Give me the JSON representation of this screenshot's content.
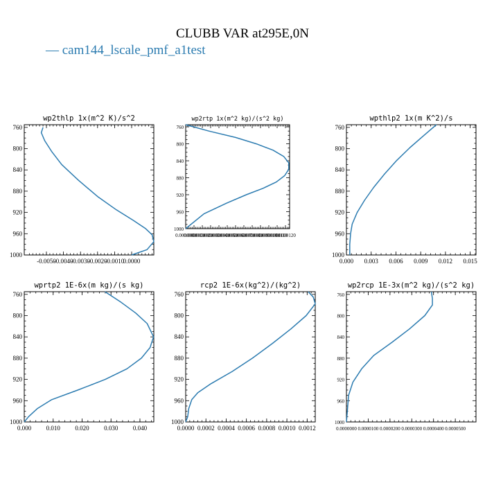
{
  "figure": {
    "title": "CLUBB VAR at295E,0N",
    "legend_label": "— cam144_lscale_pmf_a1test",
    "line_color": "#2b7bb0"
  },
  "chart_data": [
    {
      "type": "line",
      "title": "wp2thlp  1x(m^2 K)/s^2",
      "series": [
        {
          "name": "cam144_lscale_pmf_a1test",
          "x": [
            -0.0052,
            -0.0053,
            -0.0051,
            -0.0047,
            -0.0041,
            -0.0031,
            -0.002,
            -0.0009,
            0.0001,
            0.0008,
            0.0012,
            0.0013,
            0.0009,
            0.0
          ],
          "y": [
            760,
            770,
            785,
            805,
            830,
            860,
            890,
            915,
            935,
            950,
            962,
            975,
            990,
            1000
          ]
        }
      ],
      "xlim": [
        -0.0063,
        0.0013
      ],
      "ylim": [
        1000,
        755
      ],
      "xticks": [
        -0.005,
        -0.004,
        -0.003,
        -0.002,
        -0.001,
        0.0
      ],
      "xtick_labels": [
        "-0.0050",
        "-0.0040",
        "-0.0030",
        "-0.0020",
        "-0.0010",
        "0.0000"
      ],
      "yticks": [
        760,
        800,
        840,
        880,
        920,
        960,
        1000
      ],
      "ytick_labels": [
        "760",
        "800",
        "840",
        "880",
        "920",
        "960",
        "1000"
      ]
    },
    {
      "type": "line",
      "title": "wp2rtp  1x(m^2 kg)/(s^2 kg)",
      "series": [
        {
          "name": "cam144_lscale_pmf_a1test",
          "x": [
            0.0,
            2.8e-06,
            6e-06,
            8.5e-06,
            1.05e-05,
            1.18e-05,
            1.24e-05,
            1.24e-05,
            1.19e-05,
            1.09e-05,
            9.3e-06,
            7.3e-06,
            4.9e-06,
            2.2e-06,
            0.0
          ],
          "y": [
            755,
            770,
            785,
            800,
            815,
            830,
            845,
            860,
            875,
            890,
            905,
            920,
            940,
            965,
            1000
          ]
        }
      ],
      "xlim": [
        0.0,
        1.25e-05
      ],
      "ylim": [
        1000,
        755
      ],
      "xticks": [
        0.0,
        1e-06,
        2e-06,
        3e-06,
        4e-06,
        5e-06,
        6e-06,
        7e-06,
        8e-06,
        9e-06,
        1e-05,
        1.1e-05,
        1.2e-05
      ],
      "xtick_labels": [
        "0.0000000",
        "0.0000010",
        "0.0000020",
        "0.0000030",
        "0.0000040",
        "0.0000050",
        "0.0000060",
        "0.0000070",
        "0.0000080",
        "0.0000090",
        "0.0000100",
        "0.0000110",
        "0.0000120"
      ],
      "yticks": [
        760,
        800,
        840,
        880,
        920,
        960,
        1000
      ],
      "ytick_labels": [
        "760",
        "800",
        "840",
        "880",
        "920",
        "960",
        "1000"
      ]
    },
    {
      "type": "line",
      "title": "wpthlp2  1x(m K^2)/s",
      "series": [
        {
          "name": "cam144_lscale_pmf_a1test",
          "x": [
            0.0109,
            0.0094,
            0.0077,
            0.0061,
            0.0046,
            0.0033,
            0.0022,
            0.0013,
            0.0007,
            0.0005,
            0.0004,
            0.0004
          ],
          "y": [
            755,
            775,
            798,
            822,
            848,
            873,
            897,
            920,
            942,
            960,
            980,
            1000
          ]
        }
      ],
      "xlim": [
        0.0,
        0.0157
      ],
      "ylim": [
        1000,
        755
      ],
      "xticks": [
        0.0,
        0.003,
        0.006,
        0.009,
        0.012,
        0.015
      ],
      "xtick_labels": [
        "0.000",
        "0.003",
        "0.006",
        "0.009",
        "0.012",
        "0.015"
      ],
      "yticks": [
        760,
        800,
        840,
        880,
        920,
        960,
        1000
      ],
      "ytick_labels": [
        "760",
        "800",
        "840",
        "880",
        "920",
        "960",
        "1000"
      ]
    },
    {
      "type": "line",
      "title": "wprtp2  1E-6x(m kg)/(s kg)",
      "series": [
        {
          "name": "cam144_lscale_pmf_a1test",
          "x": [
            0.0279,
            0.0335,
            0.0385,
            0.0425,
            0.0447,
            0.0435,
            0.0405,
            0.0355,
            0.028,
            0.0185,
            0.0095,
            0.0045,
            0.0015,
            0.0
          ],
          "y": [
            755,
            775,
            795,
            815,
            840,
            860,
            880,
            900,
            920,
            940,
            958,
            975,
            990,
            1000
          ]
        }
      ],
      "xlim": [
        0.0,
        0.0448
      ],
      "ylim": [
        1000,
        755
      ],
      "xticks": [
        0.0,
        0.01,
        0.02,
        0.03,
        0.04
      ],
      "xtick_labels": [
        "0.000",
        "0.010",
        "0.020",
        "0.030",
        "0.040"
      ],
      "yticks": [
        760,
        800,
        840,
        880,
        920,
        960,
        1000
      ],
      "ytick_labels": [
        "760",
        "800",
        "840",
        "880",
        "920",
        "960",
        "1000"
      ]
    },
    {
      "type": "line",
      "title": "rcp2  1E-6x(kg^2)/(kg^2)",
      "series": [
        {
          "name": "cam144_lscale_pmf_a1test",
          "x": [
            0.00121,
            0.00126,
            0.00128,
            0.00119,
            0.00104,
            0.00086,
            0.00066,
            0.00046,
            0.00025,
            0.00012,
            6e-05,
            3e-05,
            2e-05,
            0.0
          ],
          "y": [
            755,
            765,
            778,
            800,
            825,
            852,
            880,
            905,
            928,
            945,
            958,
            975,
            990,
            1000
          ]
        }
      ],
      "xlim": [
        0.0,
        0.00128
      ],
      "ylim": [
        1000,
        755
      ],
      "xticks": [
        0.0,
        0.0002,
        0.0004,
        0.0006,
        0.0008,
        0.001,
        0.0012
      ],
      "xtick_labels": [
        "0.0000",
        "0.0002",
        "0.0004",
        "0.0006",
        "0.0008",
        "0.0010",
        "0.0012"
      ],
      "yticks": [
        760,
        800,
        840,
        880,
        920,
        960,
        1000
      ],
      "ytick_labels": [
        "760",
        "800",
        "840",
        "880",
        "920",
        "960",
        "1000"
      ]
    },
    {
      "type": "line",
      "title": "wp2rcp  1E-3x(m^2 kg)/(s^2 kg)",
      "series": [
        {
          "name": "cam144_lscale_pmf_a1test",
          "x": [
            3.9e-05,
            3.95e-05,
            3.95e-05,
            3.6e-05,
            2.9e-05,
            2.1e-05,
            1.25e-05,
            7e-06,
            3e-06,
            1e-06,
            5e-07,
            0.0
          ],
          "y": [
            755,
            768,
            780,
            800,
            825,
            850,
            875,
            900,
            925,
            950,
            975,
            1000
          ]
        }
      ],
      "xlim": [
        0.0,
        5.95e-05
      ],
      "ylim": [
        1000,
        755
      ],
      "xticks": [
        0.0,
        1e-05,
        2e-05,
        3e-05,
        4e-05,
        5e-05
      ],
      "xtick_labels": [
        "0.0000000",
        "0.0000100",
        "0.0000200",
        "0.0000300",
        "0.0000400",
        "0.0000500"
      ],
      "yticks": [
        760,
        800,
        840,
        880,
        920,
        960,
        1000
      ],
      "ytick_labels": [
        "760",
        "800",
        "840",
        "880",
        "920",
        "960",
        "1000"
      ]
    }
  ]
}
